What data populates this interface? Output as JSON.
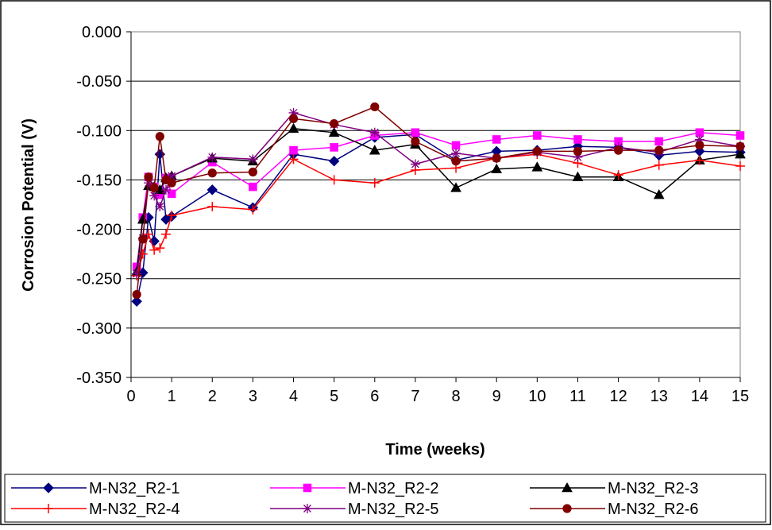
{
  "chart_data": {
    "type": "line",
    "title": "",
    "xlabel": "Time (weeks)",
    "ylabel": "Corrosion Potential (V)",
    "xlim": [
      0,
      15
    ],
    "ylim": [
      -0.35,
      0.0
    ],
    "xticks": [
      0,
      1,
      2,
      3,
      4,
      5,
      6,
      7,
      8,
      9,
      10,
      11,
      12,
      13,
      14,
      15
    ],
    "xtick_labels": [
      "0",
      "1",
      "2",
      "3",
      "4",
      "5",
      "6",
      "7",
      "8",
      "9",
      "10",
      "11",
      "12",
      "13",
      "14",
      "15"
    ],
    "yticks": [
      0.0,
      -0.05,
      -0.1,
      -0.15,
      -0.2,
      -0.25,
      -0.3,
      -0.35
    ],
    "ytick_labels": [
      "0.000",
      "-0.050",
      "-0.100",
      "-0.150",
      "-0.200",
      "-0.250",
      "-0.300",
      "-0.350"
    ],
    "grid": "horizontal",
    "legend_position": "bottom",
    "series": [
      {
        "name": "M-N32_R2-1",
        "color": "#000080",
        "marker": "diamond",
        "x": [
          0.14,
          0.29,
          0.43,
          0.57,
          0.71,
          0.86,
          1,
          2,
          3,
          4,
          5,
          6,
          7,
          8,
          9,
          10,
          11,
          12,
          13,
          14,
          15
        ],
        "y": [
          -0.273,
          -0.244,
          -0.188,
          -0.212,
          -0.124,
          -0.19,
          -0.187,
          -0.16,
          -0.178,
          -0.124,
          -0.131,
          -0.107,
          -0.104,
          -0.13,
          -0.121,
          -0.12,
          -0.116,
          -0.117,
          -0.125,
          -0.121,
          -0.122
        ]
      },
      {
        "name": "M-N32_R2-2",
        "color": "#ff00ff",
        "marker": "square",
        "x": [
          0.14,
          0.29,
          0.43,
          0.57,
          0.71,
          0.86,
          1,
          2,
          3,
          4,
          5,
          6,
          7,
          8,
          9,
          10,
          11,
          12,
          13,
          14,
          15
        ],
        "y": [
          -0.238,
          -0.188,
          -0.147,
          -0.157,
          -0.165,
          -0.148,
          -0.164,
          -0.132,
          -0.157,
          -0.12,
          -0.117,
          -0.105,
          -0.102,
          -0.115,
          -0.109,
          -0.105,
          -0.109,
          -0.111,
          -0.111,
          -0.102,
          -0.105
        ]
      },
      {
        "name": "M-N32_R2-3",
        "color": "#000000",
        "marker": "triangle",
        "x": [
          0.14,
          0.29,
          0.43,
          0.57,
          0.71,
          0.86,
          1,
          2,
          3,
          4,
          5,
          6,
          7,
          8,
          9,
          10,
          11,
          12,
          13,
          14,
          15
        ],
        "y": [
          -0.243,
          -0.19,
          -0.156,
          -0.157,
          -0.16,
          -0.148,
          -0.146,
          -0.128,
          -0.131,
          -0.098,
          -0.102,
          -0.12,
          -0.114,
          -0.158,
          -0.139,
          -0.137,
          -0.147,
          -0.147,
          -0.165,
          -0.13,
          -0.124
        ]
      },
      {
        "name": "M-N32_R2-4",
        "color": "#ff0000",
        "marker": "plus",
        "x": [
          0.14,
          0.29,
          0.43,
          0.57,
          0.71,
          0.86,
          1,
          2,
          3,
          4,
          5,
          6,
          7,
          8,
          9,
          10,
          11,
          12,
          13,
          14,
          15
        ],
        "y": [
          -0.247,
          -0.225,
          -0.205,
          -0.221,
          -0.219,
          -0.205,
          -0.186,
          -0.177,
          -0.18,
          -0.129,
          -0.15,
          -0.153,
          -0.14,
          -0.138,
          -0.128,
          -0.124,
          -0.133,
          -0.145,
          -0.135,
          -0.13,
          -0.136
        ]
      },
      {
        "name": "M-N32_R2-5",
        "color": "#800080",
        "marker": "asterisk",
        "x": [
          0.14,
          0.29,
          0.43,
          0.57,
          0.71,
          0.86,
          1,
          2,
          3,
          4,
          5,
          6,
          7,
          8,
          9,
          10,
          11,
          12,
          13,
          14,
          15
        ],
        "y": [
          -0.245,
          -0.209,
          -0.153,
          -0.166,
          -0.177,
          -0.16,
          -0.146,
          -0.127,
          -0.129,
          -0.082,
          -0.094,
          -0.102,
          -0.134,
          -0.123,
          -0.128,
          -0.122,
          -0.127,
          -0.117,
          -0.122,
          -0.109,
          -0.116
        ]
      },
      {
        "name": "M-N32_R2-6",
        "color": "#800000",
        "marker": "circle",
        "x": [
          0.14,
          0.29,
          0.43,
          0.57,
          0.71,
          0.86,
          1,
          2,
          3,
          4,
          5,
          6,
          7,
          8,
          9,
          10,
          11,
          12,
          13,
          14,
          15
        ],
        "y": [
          -0.266,
          -0.21,
          -0.147,
          -0.158,
          -0.106,
          -0.15,
          -0.153,
          -0.143,
          -0.142,
          -0.088,
          -0.093,
          -0.076,
          -0.111,
          -0.131,
          -0.128,
          -0.121,
          -0.121,
          -0.12,
          -0.12,
          -0.115,
          -0.116
        ]
      }
    ]
  }
}
